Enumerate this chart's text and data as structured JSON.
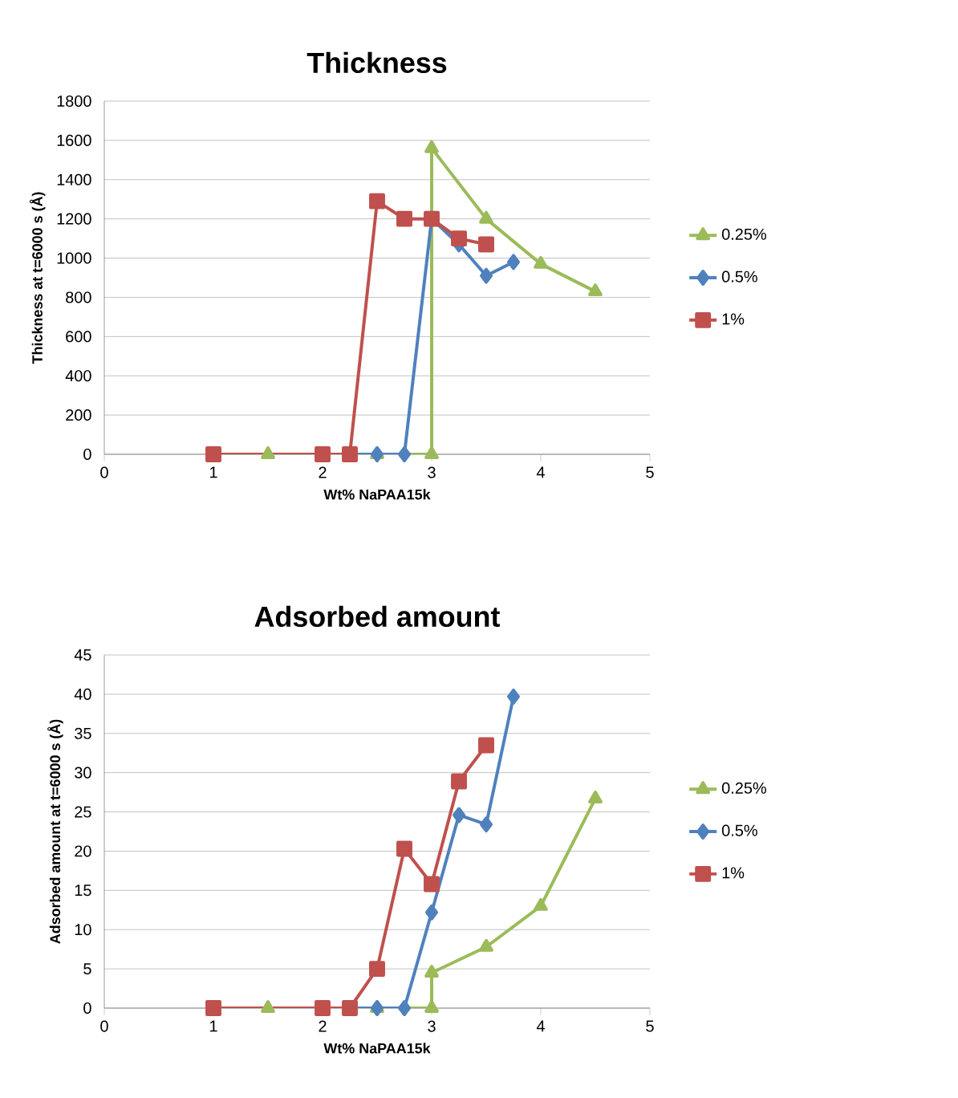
{
  "chart_data": [
    {
      "type": "line",
      "title": "Thickness",
      "xlabel": "Wt% NaPAA15k",
      "ylabel": "Thickness at t=6000 s (Å)",
      "xlim": [
        0,
        5
      ],
      "xticks": [
        0,
        1,
        2,
        3,
        4,
        5
      ],
      "ylim": [
        0,
        1800
      ],
      "yticks": [
        0,
        200,
        400,
        600,
        800,
        1000,
        1200,
        1400,
        1600,
        1800
      ],
      "grid": "y",
      "legend": "right",
      "line_style": "solid",
      "series": [
        {
          "name": "0.25%",
          "color": "#9bbb59",
          "marker": "triangle",
          "x": [
            1,
            1.5,
            2,
            2.5,
            3,
            3,
            3.5,
            4,
            4.5
          ],
          "values": [
            0,
            0,
            0,
            0,
            0,
            1560,
            1200,
            970,
            830
          ]
        },
        {
          "name": "0.5%",
          "color": "#4f81bd",
          "marker": "diamond",
          "x": [
            1,
            2,
            2.25,
            2.5,
            2.75,
            3,
            3.25,
            3.5,
            3.75
          ],
          "values": [
            0,
            0,
            0,
            0,
            0,
            1200,
            1070,
            910,
            980
          ]
        },
        {
          "name": "1%",
          "color": "#c0504d",
          "marker": "square",
          "x": [
            1,
            2,
            2.25,
            2.5,
            2.75,
            3,
            3.25,
            3.5
          ],
          "values": [
            0,
            0,
            0,
            1290,
            1200,
            1200,
            1100,
            1070
          ]
        }
      ]
    },
    {
      "type": "line",
      "title": "Adsorbed amount",
      "xlabel": "Wt% NaPAA15k",
      "ylabel": "Adsorbed amount at t=6000 s (Å)",
      "xlim": [
        0,
        5
      ],
      "xticks": [
        0,
        1,
        2,
        3,
        4,
        5
      ],
      "ylim": [
        0,
        45
      ],
      "yticks": [
        0,
        5,
        10,
        15,
        20,
        25,
        30,
        35,
        40,
        45
      ],
      "grid": "y",
      "legend": "right",
      "line_style": "solid",
      "series": [
        {
          "name": "0.25%",
          "color": "#9bbb59",
          "marker": "triangle",
          "x": [
            1,
            1.5,
            2,
            2.5,
            3,
            3,
            3.5,
            4,
            4.5
          ],
          "values": [
            0,
            0,
            0,
            0,
            0,
            4.5,
            7.8,
            13,
            26.7
          ]
        },
        {
          "name": "0.5%",
          "color": "#4f81bd",
          "marker": "diamond",
          "x": [
            1,
            2,
            2.25,
            2.5,
            2.75,
            3,
            3.25,
            3.5,
            3.75
          ],
          "values": [
            0,
            0,
            0,
            0,
            0,
            12.2,
            24.6,
            23.4,
            39.7
          ]
        },
        {
          "name": "1%",
          "color": "#c0504d",
          "marker": "square",
          "x": [
            1,
            2,
            2.25,
            2.5,
            2.75,
            3,
            3.25,
            3.5
          ],
          "values": [
            0,
            0,
            0,
            5,
            20.3,
            15.8,
            28.9,
            33.5
          ]
        }
      ]
    }
  ]
}
